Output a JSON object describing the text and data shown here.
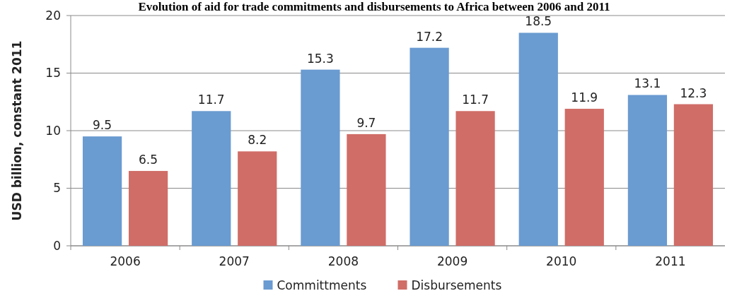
{
  "chart_data": {
    "type": "bar",
    "title": "Evolution of aid for trade commitments and disbursements to Africa between 2006 and 2011",
    "ylabel": "USD billion, constant 2011",
    "categories": [
      "2006",
      "2007",
      "2008",
      "2009",
      "2010",
      "2011"
    ],
    "series": [
      {
        "name": "Committments",
        "color": "#6a9bd1",
        "values": [
          9.5,
          11.7,
          15.3,
          17.2,
          18.5,
          13.1
        ]
      },
      {
        "name": "Disbursements",
        "color": "#d06d67",
        "values": [
          6.5,
          8.2,
          9.7,
          11.7,
          11.9,
          12.3
        ]
      }
    ],
    "ylim": [
      0,
      20
    ],
    "yticks": [
      0,
      5,
      10,
      15,
      20
    ],
    "grid": "y",
    "legend": "bottom",
    "data_labels": true
  }
}
